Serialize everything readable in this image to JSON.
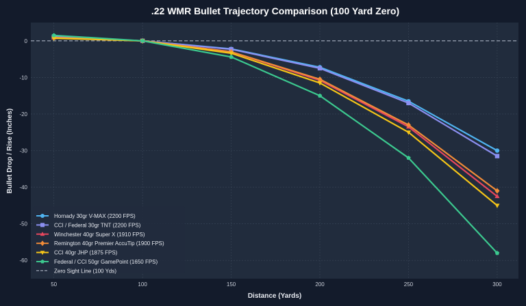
{
  "chart_data": {
    "type": "line",
    "title": ".22 WMR Bullet Trajectory Comparison (100 Yard Zero)",
    "xlabel": "Distance (Yards)",
    "ylabel": "Bullet Drop / Rise (Inches)",
    "x": [
      50,
      100,
      150,
      200,
      250,
      300
    ],
    "xticks": [
      50,
      100,
      150,
      200,
      250,
      300
    ],
    "yticks": [
      0,
      -10,
      -20,
      -30,
      -40,
      -50,
      -60
    ],
    "xlim": [
      37,
      312
    ],
    "ylim": [
      -65,
      5
    ],
    "grid": true,
    "legend_position": "lower-left",
    "series": [
      {
        "name": "Hornady 30gr V-MAX (2200 FPS)",
        "color": "#4fb3f0",
        "marker": "circle",
        "values": [
          1.0,
          0,
          -2.2,
          -7.2,
          -16.5,
          -30.0
        ]
      },
      {
        "name": "CCI / Federal 30gr TNT (2200 FPS)",
        "color": "#8b8ff0",
        "marker": "square",
        "values": [
          1.1,
          0,
          -2.3,
          -7.5,
          -17.0,
          -31.5
        ]
      },
      {
        "name": "Winchester 40gr Super X (1910 FPS)",
        "color": "#e8475e",
        "marker": "triangle-up",
        "values": [
          0.8,
          0,
          -3.0,
          -10.8,
          -23.5,
          -42.5
        ]
      },
      {
        "name": "Remington 40gr Premier AccuTip (1900 FPS)",
        "color": "#f28c38",
        "marker": "diamond",
        "values": [
          0.9,
          0,
          -3.0,
          -10.5,
          -23.0,
          -41.0
        ]
      },
      {
        "name": "CCI 40gr JHP (1875 FPS)",
        "color": "#f5c518",
        "marker": "triangle-down",
        "values": [
          0.7,
          0,
          -3.4,
          -11.5,
          -25.0,
          -45.0
        ]
      },
      {
        "name": "Federal / CCI 50gr GamePoint (1650 FPS)",
        "color": "#3cc98f",
        "marker": "pentagon",
        "values": [
          1.5,
          0,
          -4.4,
          -15.0,
          -32.0,
          -58.0
        ]
      }
    ],
    "reference_line": {
      "name": "Zero Sight Line (100 Yds)",
      "value": 0,
      "color": "#9aa3b2",
      "style": "dashed"
    }
  }
}
